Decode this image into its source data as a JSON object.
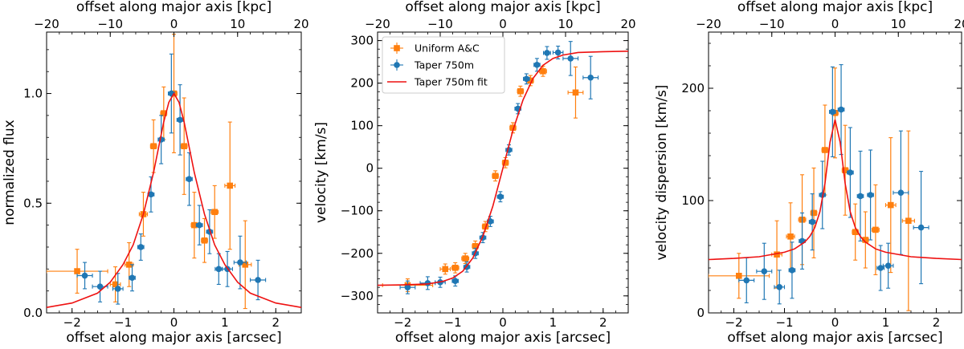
{
  "colors": {
    "uniform": "#ff7f0e",
    "taper": "#1f77b4",
    "fit": "#ee1111"
  },
  "chart_data": [
    {
      "type": "scatter",
      "xlabel": "offset along major axis [arcsec]",
      "ylabel": "normalized flux",
      "top_xlabel": "offset along major axis [kpc]",
      "xlim": [
        -2.5,
        2.5
      ],
      "ylim": [
        0,
        1.28
      ],
      "top_xlim": [
        -20,
        20
      ],
      "xticks": [
        -2,
        -1,
        0,
        1,
        2
      ],
      "xtick_labels": [
        "−2",
        "−1",
        "0",
        "1",
        "2"
      ],
      "yticks": [
        0,
        0.5,
        1.0
      ],
      "ytick_labels": [
        "0.0",
        "0.5",
        "1.0"
      ],
      "top_xticks": [
        -20,
        -10,
        0,
        10,
        20
      ],
      "top_xtick_labels": [
        "−20",
        "−10",
        "0",
        "10",
        "20"
      ],
      "legend": null,
      "series": [
        {
          "kind": "points",
          "marker": "square",
          "color_key": "uniform",
          "points": [
            [
              -1.9,
              0.19,
              0.6,
              0.1
            ],
            [
              -1.15,
              0.13,
              0.1,
              0.08
            ],
            [
              -0.88,
              0.22,
              0.08,
              0.1
            ],
            [
              -0.6,
              0.45,
              0.08,
              0.1
            ],
            [
              -0.4,
              0.76,
              0.06,
              0.12
            ],
            [
              -0.2,
              0.91,
              0.06,
              0.12
            ],
            [
              0.0,
              1.0,
              0.06,
              0.27
            ],
            [
              0.2,
              0.76,
              0.06,
              0.22
            ],
            [
              0.4,
              0.4,
              0.06,
              0.15
            ],
            [
              0.6,
              0.33,
              0.06,
              0.1
            ],
            [
              0.8,
              0.46,
              0.07,
              0.12
            ],
            [
              1.1,
              0.58,
              0.1,
              0.29
            ],
            [
              1.4,
              0.22,
              0.12,
              0.2
            ]
          ]
        },
        {
          "kind": "points",
          "marker": "circle",
          "color_key": "taper",
          "points": [
            [
              -1.75,
              0.17,
              0.15,
              0.06
            ],
            [
              -1.45,
              0.12,
              0.15,
              0.07
            ],
            [
              -1.1,
              0.11,
              0.1,
              0.07
            ],
            [
              -0.82,
              0.16,
              0.06,
              0.06
            ],
            [
              -0.65,
              0.3,
              0.06,
              0.06
            ],
            [
              -0.45,
              0.54,
              0.06,
              0.08
            ],
            [
              -0.25,
              0.79,
              0.06,
              0.11
            ],
            [
              -0.05,
              1.0,
              0.06,
              0.18
            ],
            [
              0.12,
              0.88,
              0.06,
              0.16
            ],
            [
              0.3,
              0.61,
              0.06,
              0.12
            ],
            [
              0.5,
              0.4,
              0.06,
              0.09
            ],
            [
              0.7,
              0.37,
              0.06,
              0.1
            ],
            [
              0.88,
              0.2,
              0.07,
              0.07
            ],
            [
              1.05,
              0.2,
              0.1,
              0.08
            ],
            [
              1.3,
              0.23,
              0.12,
              0.12
            ],
            [
              1.65,
              0.15,
              0.15,
              0.09
            ]
          ]
        },
        {
          "kind": "curve",
          "color_key": "fit",
          "points": [
            [
              -2.5,
              0.025
            ],
            [
              -2.0,
              0.045
            ],
            [
              -1.5,
              0.09
            ],
            [
              -1.25,
              0.14
            ],
            [
              -1.0,
              0.22
            ],
            [
              -0.8,
              0.31
            ],
            [
              -0.6,
              0.45
            ],
            [
              -0.4,
              0.64
            ],
            [
              -0.2,
              0.87
            ],
            [
              -0.1,
              0.96
            ],
            [
              0.0,
              1.0
            ],
            [
              0.1,
              0.96
            ],
            [
              0.2,
              0.87
            ],
            [
              0.4,
              0.64
            ],
            [
              0.6,
              0.45
            ],
            [
              0.8,
              0.31
            ],
            [
              1.0,
              0.22
            ],
            [
              1.25,
              0.14
            ],
            [
              1.5,
              0.09
            ],
            [
              2.0,
              0.045
            ],
            [
              2.5,
              0.025
            ]
          ]
        }
      ]
    },
    {
      "type": "scatter",
      "xlabel": "offset along major axis [arcsec]",
      "ylabel": "velocity [km/s]",
      "top_xlabel": "offset along major axis [kpc]",
      "xlim": [
        -2.5,
        2.5
      ],
      "ylim": [
        -340,
        320
      ],
      "top_xlim": [
        -20,
        20
      ],
      "xticks": [
        -2,
        -1,
        0,
        1,
        2
      ],
      "xtick_labels": [
        "−2",
        "−1",
        "0",
        "1",
        "2"
      ],
      "yticks": [
        -300,
        -200,
        -100,
        0,
        100,
        200,
        300
      ],
      "ytick_labels": [
        "−300",
        "−200",
        "−100",
        "0",
        "100",
        "200",
        "300"
      ],
      "top_xticks": [
        -20,
        -10,
        0,
        10,
        20
      ],
      "top_xtick_labels": [
        "−20",
        "−10",
        "0",
        "10",
        "20"
      ],
      "legend": {
        "position": "top-left",
        "entries": [
          {
            "label": "Uniform A&C",
            "color_key": "uniform",
            "marker": "square"
          },
          {
            "label": "Taper 750m",
            "color_key": "taper",
            "marker": "circle"
          },
          {
            "label": "Taper 750m fit",
            "color_key": "fit",
            "marker": "line"
          }
        ]
      },
      "series": [
        {
          "kind": "points",
          "marker": "square",
          "color_key": "uniform",
          "points": [
            [
              -1.9,
              -275,
              0.5,
              15
            ],
            [
              -1.15,
              -237,
              0.1,
              12
            ],
            [
              -0.95,
              -234,
              0.07,
              12
            ],
            [
              -0.75,
              -212,
              0.07,
              12
            ],
            [
              -0.55,
              -183,
              0.06,
              12
            ],
            [
              -0.35,
              -137,
              0.06,
              12
            ],
            [
              -0.15,
              -18,
              0.06,
              12
            ],
            [
              0.05,
              13,
              0.06,
              12
            ],
            [
              0.2,
              95,
              0.06,
              12
            ],
            [
              0.35,
              181,
              0.06,
              12
            ],
            [
              0.55,
              206,
              0.06,
              12
            ],
            [
              0.8,
              228,
              0.07,
              12
            ],
            [
              1.45,
              178,
              0.15,
              60
            ]
          ]
        },
        {
          "kind": "points",
          "marker": "circle",
          "color_key": "taper",
          "points": [
            [
              -1.9,
              -280,
              0.15,
              15
            ],
            [
              -1.5,
              -270,
              0.15,
              15
            ],
            [
              -1.25,
              -268,
              0.1,
              12
            ],
            [
              -0.95,
              -265,
              0.06,
              12
            ],
            [
              -0.72,
              -232,
              0.06,
              12
            ],
            [
              -0.55,
              -200,
              0.06,
              12
            ],
            [
              -0.4,
              -163,
              0.06,
              12
            ],
            [
              -0.25,
              -125,
              0.06,
              12
            ],
            [
              -0.05,
              -67,
              0.06,
              12
            ],
            [
              0.12,
              43,
              0.06,
              12
            ],
            [
              0.3,
              140,
              0.06,
              12
            ],
            [
              0.47,
              210,
              0.06,
              12
            ],
            [
              0.68,
              243,
              0.06,
              15
            ],
            [
              0.88,
              271,
              0.07,
              15
            ],
            [
              1.1,
              272,
              0.1,
              15
            ],
            [
              1.35,
              258,
              0.15,
              40
            ],
            [
              1.75,
              213,
              0.15,
              50
            ]
          ]
        },
        {
          "kind": "curve",
          "color_key": "fit",
          "points": [
            [
              -2.5,
              -275
            ],
            [
              -2.0,
              -274
            ],
            [
              -1.5,
              -272
            ],
            [
              -1.2,
              -266
            ],
            [
              -1.0,
              -258
            ],
            [
              -0.8,
              -242
            ],
            [
              -0.6,
              -211
            ],
            [
              -0.4,
              -160
            ],
            [
              -0.2,
              -89
            ],
            [
              0.0,
              0
            ],
            [
              0.2,
              89
            ],
            [
              0.4,
              160
            ],
            [
              0.6,
              211
            ],
            [
              0.8,
              242
            ],
            [
              1.0,
              258
            ],
            [
              1.2,
              266
            ],
            [
              1.5,
              272
            ],
            [
              2.0,
              274
            ],
            [
              2.5,
              275
            ]
          ]
        }
      ]
    },
    {
      "type": "scatter",
      "xlabel": "offset along major axis [arcsec]",
      "ylabel": "velocity dispersion [km/s]",
      "top_xlabel": "offset along major axis [kpc]",
      "xlim": [
        -2.5,
        2.5
      ],
      "ylim": [
        0,
        250
      ],
      "top_xlim": [
        -20,
        20
      ],
      "xticks": [
        -2,
        -1,
        0,
        1,
        2
      ],
      "xtick_labels": [
        "−2",
        "−1",
        "0",
        "1",
        "2"
      ],
      "yticks": [
        0,
        100,
        200
      ],
      "ytick_labels": [
        "0",
        "100",
        "200"
      ],
      "top_xticks": [
        -20,
        -10,
        0,
        10,
        20
      ],
      "top_xtick_labels": [
        "−20",
        "−10",
        "0",
        "10",
        "20"
      ],
      "legend": null,
      "series": [
        {
          "kind": "points",
          "marker": "square",
          "color_key": "uniform",
          "points": [
            [
              -1.9,
              33,
              0.6,
              20
            ],
            [
              -1.15,
              52,
              0.1,
              30
            ],
            [
              -0.88,
              68,
              0.08,
              30
            ],
            [
              -0.65,
              83,
              0.07,
              40
            ],
            [
              -0.42,
              89,
              0.06,
              40
            ],
            [
              -0.2,
              145,
              0.06,
              40
            ],
            [
              0.0,
              178,
              0.06,
              40
            ],
            [
              0.2,
              127,
              0.06,
              40
            ],
            [
              0.4,
              72,
              0.06,
              25
            ],
            [
              0.6,
              65,
              0.06,
              25
            ],
            [
              0.8,
              74,
              0.07,
              40
            ],
            [
              1.1,
              96,
              0.1,
              60
            ],
            [
              1.45,
              82,
              0.12,
              80
            ]
          ]
        },
        {
          "kind": "points",
          "marker": "circle",
          "color_key": "taper",
          "points": [
            [
              -1.75,
              29,
              0.15,
              20
            ],
            [
              -1.4,
              37,
              0.15,
              25
            ],
            [
              -1.1,
              23,
              0.1,
              15
            ],
            [
              -0.85,
              38,
              0.06,
              25
            ],
            [
              -0.65,
              64,
              0.06,
              25
            ],
            [
              -0.45,
              81,
              0.06,
              25
            ],
            [
              -0.25,
              105,
              0.06,
              30
            ],
            [
              -0.05,
              179,
              0.06,
              40
            ],
            [
              0.12,
              181,
              0.06,
              40
            ],
            [
              0.3,
              125,
              0.06,
              40
            ],
            [
              0.5,
              104,
              0.06,
              40
            ],
            [
              0.7,
              105,
              0.06,
              40
            ],
            [
              0.9,
              40,
              0.07,
              20
            ],
            [
              1.05,
              42,
              0.1,
              20
            ],
            [
              1.3,
              107,
              0.15,
              55
            ],
            [
              1.7,
              76,
              0.15,
              50
            ]
          ]
        },
        {
          "kind": "curve",
          "color_key": "fit",
          "points": [
            [
              -2.5,
              47.5
            ],
            [
              -2.0,
              48.5
            ],
            [
              -1.5,
              50
            ],
            [
              -1.0,
              54
            ],
            [
              -0.8,
              57
            ],
            [
              -0.6,
              63
            ],
            [
              -0.5,
              68
            ],
            [
              -0.4,
              76
            ],
            [
              -0.3,
              90
            ],
            [
              -0.2,
              115
            ],
            [
              -0.1,
              152
            ],
            [
              0.0,
              172
            ],
            [
              0.1,
              152
            ],
            [
              0.2,
              115
            ],
            [
              0.3,
              90
            ],
            [
              0.4,
              76
            ],
            [
              0.5,
              68
            ],
            [
              0.6,
              63
            ],
            [
              0.8,
              57
            ],
            [
              1.0,
              54
            ],
            [
              1.5,
              50
            ],
            [
              2.0,
              48.5
            ],
            [
              2.5,
              47.5
            ]
          ]
        }
      ]
    }
  ]
}
